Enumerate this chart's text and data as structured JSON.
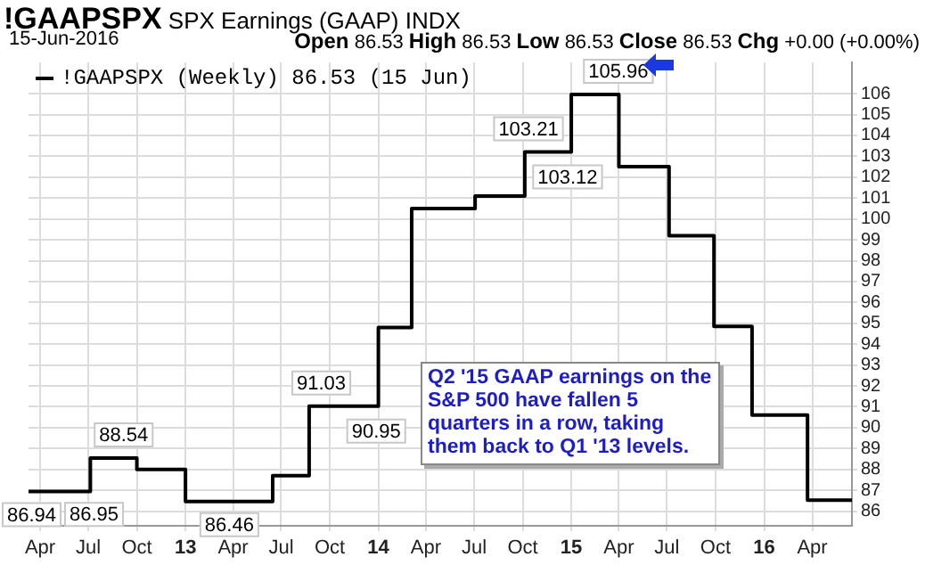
{
  "chart_data": {
    "type": "step",
    "title": "!GAAPSPX",
    "subtitle": "SPX Earnings (GAAP) INDX",
    "x": [
      "2012-03-10",
      "2012-07-05",
      "2012-10-01",
      "2013-01-01",
      "2013-06-15",
      "2013-08-23",
      "2014-01-01",
      "2014-03-05",
      "2014-07-03",
      "2014-10-05",
      "2015-01-01",
      "2015-04-01",
      "2015-07-05",
      "2015-09-28",
      "2015-12-09",
      "2016-03-23",
      "2016-06-15"
    ],
    "series": [
      {
        "name": "!GAAPSPX (Weekly) 86.53 (15 Jun)",
        "color": "#000000",
        "values": [
          86.94,
          88.54,
          88.0,
          86.46,
          87.7,
          91.03,
          94.8,
          100.5,
          101.1,
          103.21,
          105.96,
          102.5,
          99.2,
          94.85,
          90.6,
          86.53,
          86.53
        ]
      }
    ],
    "xlim": [
      "2012-03-10",
      "2016-06-15"
    ],
    "xticks": [
      {
        "value": "2012-04-01",
        "label": "Apr"
      },
      {
        "value": "2012-07-01",
        "label": "Jul"
      },
      {
        "value": "2012-10-01",
        "label": "Oct"
      },
      {
        "value": "2013-01-01",
        "label": "13"
      },
      {
        "value": "2013-04-01",
        "label": "Apr"
      },
      {
        "value": "2013-07-01",
        "label": "Jul"
      },
      {
        "value": "2013-10-01",
        "label": "Oct"
      },
      {
        "value": "2014-01-01",
        "label": "14"
      },
      {
        "value": "2014-04-01",
        "label": "Apr"
      },
      {
        "value": "2014-07-01",
        "label": "Jul"
      },
      {
        "value": "2014-10-01",
        "label": "Oct"
      },
      {
        "value": "2015-01-01",
        "label": "15"
      },
      {
        "value": "2015-04-01",
        "label": "Apr"
      },
      {
        "value": "2015-07-01",
        "label": "Jul"
      },
      {
        "value": "2015-10-01",
        "label": "Oct"
      },
      {
        "value": "2016-01-01",
        "label": "16"
      },
      {
        "value": "2016-04-01",
        "label": "Apr"
      }
    ],
    "ylim": [
      85.3,
      107.5
    ],
    "yticks": [
      86,
      87,
      88,
      89,
      90,
      91,
      92,
      93,
      94,
      95,
      96,
      97,
      98,
      99,
      100,
      101,
      102,
      103,
      104,
      105,
      106
    ],
    "grid": true,
    "legend": "top left",
    "marker": "none",
    "line_style": "solid",
    "annotations": [
      "15-Jun-2016",
      "Open 86.53 High 86.53 Low 86.53 Close 86.53 Chg +0.00 (+0.00%)",
      "Q2 '15 GAAP earnings on the S&P 500 have fallen 5 quarters in a row, taking them back to Q1 '13 levels.",
      {
        "text": "86.94",
        "x": "2012-03-14",
        "y": 86.94
      },
      {
        "text": "86.95",
        "x": "2012-07-12",
        "y": 86.95
      },
      {
        "text": "88.54",
        "x": "2012-09-06",
        "y": 88.54
      },
      {
        "text": "86.46",
        "x": "2013-03-25",
        "y": 86.46
      },
      {
        "text": "91.03",
        "x": "2013-09-15",
        "y": 91.03
      },
      {
        "text": "90.95",
        "x": "2013-12-28",
        "y": 90.95
      },
      {
        "text": "103.21",
        "x": "2014-10-12",
        "y": 103.21
      },
      {
        "text": "103.12",
        "x": "2014-12-25",
        "y": 103.12
      },
      {
        "text": "105.96",
        "x": "2015-03-31",
        "y": 105.96
      }
    ]
  }
}
